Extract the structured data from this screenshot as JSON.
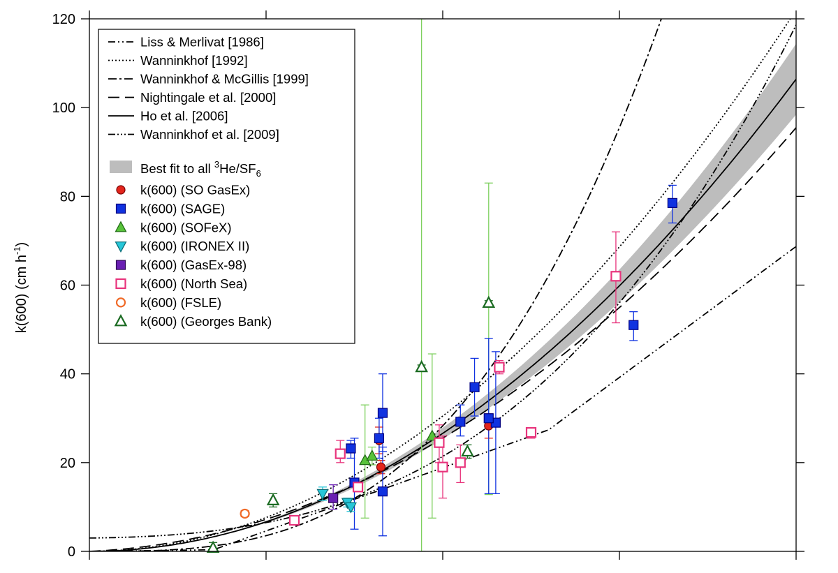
{
  "chart_data": {
    "type": "scatter",
    "title": "",
    "xlabel": "",
    "ylabel_main": "k(600) (cm h",
    "ylabel_sup": "-1",
    "ylabel_close": ")",
    "xlim": [
      0,
      20
    ],
    "ylim": [
      0,
      120
    ],
    "x_ticks": [
      0,
      5,
      10,
      15,
      20
    ],
    "y_ticks": [
      0,
      20,
      40,
      60,
      80,
      100,
      120
    ],
    "y_tick_labels": [
      "0",
      "20",
      "40",
      "60",
      "80",
      "100",
      "120"
    ],
    "grid": false,
    "legend_position": "top-left",
    "curves": [
      {
        "name": "Liss & Merlivat [1986]",
        "style": "dash-dot-dot",
        "formula": "liss"
      },
      {
        "name": "Wanninkhof [1992]",
        "style": "dotted",
        "formula": "w92"
      },
      {
        "name": "Wanninkhof & McGillis [1999]",
        "style": "dash-dot",
        "formula": "wm99"
      },
      {
        "name": "Nightingale et al. [2000]",
        "style": "long-dash",
        "formula": "n00"
      },
      {
        "name": "Ho et al. [2006]",
        "style": "solid",
        "formula": "ho06"
      },
      {
        "name": "Wanninkhof et al. [2009]",
        "style": "dash-dot-dot-dot",
        "formula": "w09"
      }
    ],
    "band": {
      "label_prefix": "Best fit to all ",
      "label_sup": "3",
      "label_mid": "He/SF",
      "label_sub": "6",
      "color": "#bdbdbd"
    },
    "series": [
      {
        "name": "k(600) (SO GasEx)",
        "marker": "circle",
        "filled": true,
        "color": "#e3251c",
        "edge": "#7a0000",
        "errcolor": "#e3251c",
        "points": [
          [
            8.2,
            25.0,
            22.0,
            28.0
          ],
          [
            8.25,
            19.0,
            17.5,
            20.5
          ],
          [
            11.3,
            28.3,
            25.5,
            31.0
          ]
        ]
      },
      {
        "name": "k(600) (SAGE)",
        "marker": "square",
        "filled": true,
        "color": "#1032e0",
        "edge": "#000080",
        "errcolor": "#1032e0",
        "points": [
          [
            7.5,
            15.5,
            5.0,
            25.5
          ],
          [
            7.4,
            23.2,
            21.0,
            25.0
          ],
          [
            8.2,
            25.5,
            21.0,
            30.0
          ],
          [
            8.3,
            31.2,
            22.5,
            40.0
          ],
          [
            8.3,
            13.5,
            3.5,
            23.5
          ],
          [
            10.5,
            29.2,
            26.0,
            33.0
          ],
          [
            10.9,
            37.0,
            30.5,
            43.5
          ],
          [
            11.5,
            29.0,
            13.0,
            45.0
          ],
          [
            11.3,
            30.0,
            13.0,
            48.0
          ],
          [
            15.4,
            51.0,
            47.5,
            54.0
          ],
          [
            16.5,
            78.5,
            74.0,
            82.5
          ]
        ]
      },
      {
        "name": "k(600) (SOFeX)",
        "marker": "triangle-up",
        "filled": true,
        "color": "#58c23a",
        "edge": "#1f6b14",
        "errcolor": "#7ed05f",
        "points": [
          [
            7.8,
            20.5,
            7.5,
            33.0
          ],
          [
            8.0,
            21.5,
            19.5,
            23.5
          ],
          [
            9.7,
            26.0,
            7.5,
            44.5
          ]
        ]
      },
      {
        "name": "k(600) (IRONEX II)",
        "marker": "triangle-down",
        "filled": true,
        "color": "#26c6d8",
        "edge": "#0a6b75",
        "errcolor": "#26c6d8",
        "points": [
          [
            6.6,
            13.0,
            11.5,
            14.5
          ],
          [
            7.3,
            11.0,
            10.0,
            12.0
          ],
          [
            7.4,
            10.0,
            9.0,
            11.0
          ]
        ]
      },
      {
        "name": "k(600) (GasEx-98)",
        "marker": "square",
        "filled": true,
        "color": "#6a1fb3",
        "edge": "#2e0a55",
        "errcolor": "#6a1fb3",
        "points": [
          [
            6.9,
            12.0,
            9.5,
            15.0
          ]
        ]
      },
      {
        "name": "k(600) (North Sea)",
        "marker": "square",
        "filled": false,
        "color": "#e8347c",
        "edge": "#e8347c",
        "errcolor": "#e8347c",
        "points": [
          [
            5.8,
            7.0,
            6.5,
            7.5
          ],
          [
            7.1,
            22.0,
            20.0,
            25.0
          ],
          [
            7.6,
            14.5,
            13.5,
            15.5
          ],
          [
            9.9,
            24.5,
            20.0,
            28.5
          ],
          [
            10.0,
            19.0,
            12.0,
            26.0
          ],
          [
            10.5,
            20.0,
            15.5,
            24.0
          ],
          [
            11.6,
            41.5,
            40.0,
            43.0
          ],
          [
            12.5,
            26.8,
            25.5,
            27.8
          ],
          [
            14.9,
            62.0,
            51.5,
            72.0
          ]
        ]
      },
      {
        "name": "k(600) (FSLE)",
        "marker": "circle",
        "filled": false,
        "color": "#f06a28",
        "edge": "#f06a28",
        "errcolor": "#f06a28",
        "points": [
          [
            4.4,
            8.5,
            7.8,
            9.2
          ]
        ]
      },
      {
        "name": "k(600) (Georges Bank)",
        "marker": "triangle-up",
        "filled": false,
        "color": "#1b6b22",
        "edge": "#1b6b22",
        "errcolor": "#1b6b22",
        "points": [
          [
            3.5,
            0.8,
            0.0,
            2.0
          ],
          [
            5.2,
            11.5,
            10.0,
            13.0
          ],
          [
            9.4,
            41.5,
            41.0,
            42.0
          ],
          [
            10.7,
            22.5,
            21.0,
            24.0
          ],
          [
            11.3,
            56.0,
            55.5,
            56.5
          ]
        ]
      }
    ],
    "extra_errorbars": [
      {
        "x": 9.4,
        "low": 0.0,
        "high": 120.0,
        "color": "#7ed05f"
      },
      {
        "x": 11.3,
        "low": 12.8,
        "high": 83.0,
        "color": "#7ed05f"
      }
    ]
  }
}
